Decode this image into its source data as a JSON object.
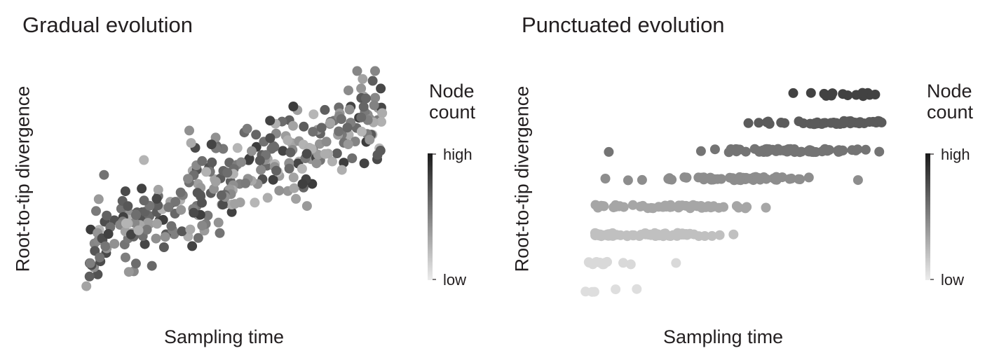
{
  "chart_data": [
    {
      "type": "scatter",
      "title": "Gradual evolution",
      "xlabel": "Sampling time",
      "ylabel": "Root-to-tip divergence",
      "axes_ticks_shown": false,
      "grid": false,
      "colorbar": {
        "title_line1": "Node",
        "title_line2": "count",
        "high_label": "high",
        "low_label": "low",
        "color_high": "#1a1a1a",
        "color_low": "#e8e8e8"
      },
      "color_mapping": "random mix of node counts (little relation to position)",
      "xlim": [
        0,
        1
      ],
      "ylim": [
        0,
        1
      ],
      "n_points": 320,
      "seed": 7
    },
    {
      "type": "scatter",
      "title": "Punctuated evolution",
      "xlabel": "Sampling time",
      "ylabel": "Root-to-tip divergence",
      "axes_ticks_shown": false,
      "grid": false,
      "colorbar": {
        "title_line1": "Node",
        "title_line2": "count",
        "high_label": "high",
        "low_label": "low",
        "color_high": "#1a1a1a",
        "color_low": "#e8e8e8"
      },
      "color_mapping": "node count increases with divergence (darker at top)",
      "xlim": [
        0,
        1
      ],
      "ylim": [
        0,
        1
      ],
      "n_points": 320,
      "seed": 11
    }
  ]
}
